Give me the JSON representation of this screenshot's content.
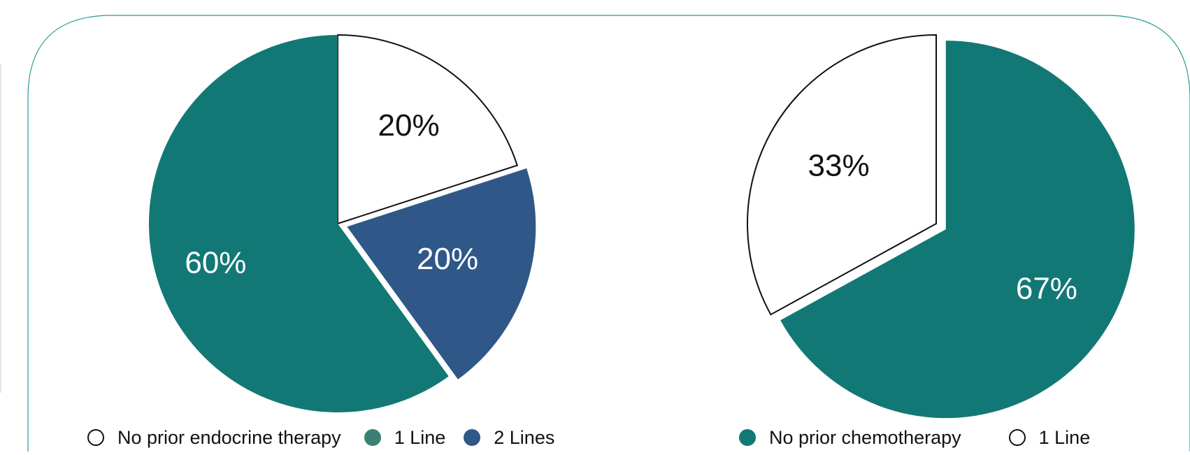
{
  "colors": {
    "teal": "#127876",
    "blue": "#2f5889",
    "white": "#ffffff",
    "outline": "#111111",
    "frame": "#2a9a94",
    "label_dark": "#111111",
    "label_light": "#ffffff"
  },
  "chart_data": [
    {
      "type": "pie",
      "title": "",
      "slices": [
        {
          "label": "No prior endocrine therapy",
          "value": 20,
          "display": "20%",
          "color": "#ffffff",
          "outlined": true,
          "exploded": false
        },
        {
          "label": "2 Lines",
          "value": 20,
          "display": "20%",
          "color": "#2f5889",
          "outlined": false,
          "exploded": true
        },
        {
          "label": "1 Line",
          "value": 60,
          "display": "60%",
          "color": "#127876",
          "outlined": false,
          "exploded": false
        }
      ],
      "legend": [
        {
          "label": "No prior endocrine therapy",
          "color": "#ffffff",
          "outlined": true
        },
        {
          "label": "1 Line",
          "color": "#3b7f75",
          "outlined": false
        },
        {
          "label": "2 Lines",
          "color": "#2f5889",
          "outlined": false
        }
      ],
      "legend_position": "bottom"
    },
    {
      "type": "pie",
      "title": "",
      "slices": [
        {
          "label": "No prior chemotherapy",
          "value": 67,
          "display": "67%",
          "color": "#127876",
          "outlined": false,
          "exploded": true
        },
        {
          "label": "1 Line",
          "value": 33,
          "display": "33%",
          "color": "#ffffff",
          "outlined": true,
          "exploded": false
        }
      ],
      "legend": [
        {
          "label": "No prior chemotherapy",
          "color": "#127876",
          "outlined": false
        },
        {
          "label": "1 Line",
          "color": "#ffffff",
          "outlined": true
        }
      ],
      "legend_position": "bottom"
    }
  ]
}
